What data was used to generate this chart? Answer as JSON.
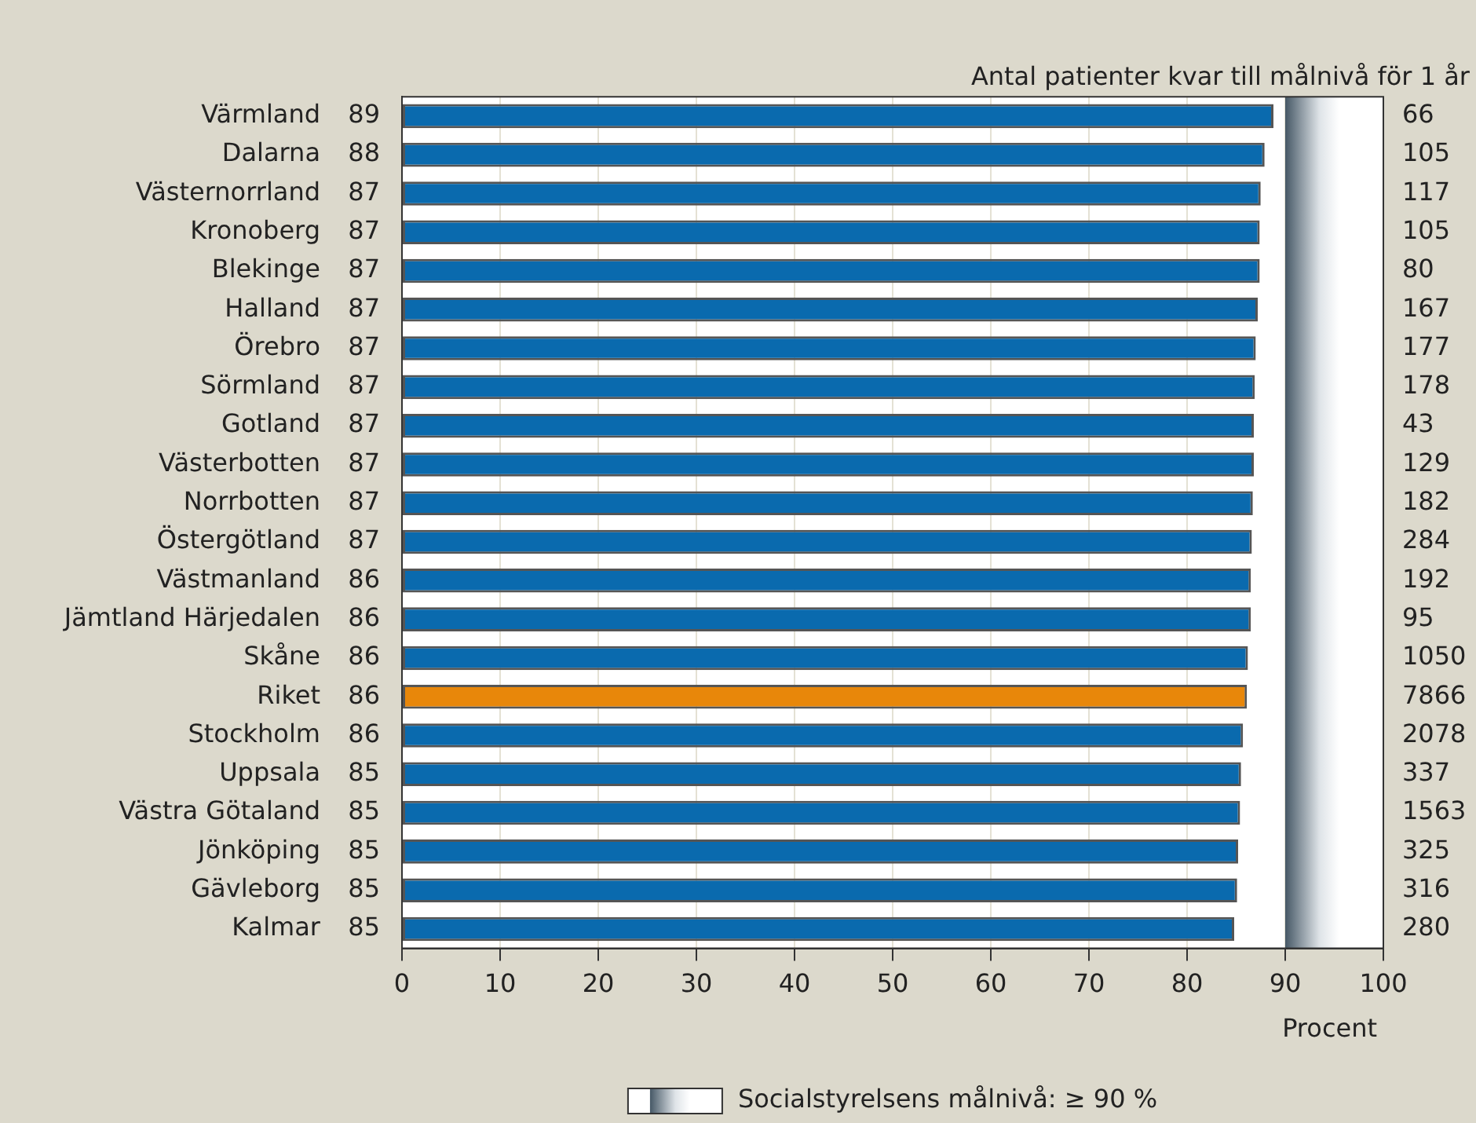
{
  "chart_data": {
    "type": "bar",
    "orientation": "horizontal",
    "xlabel": "Procent",
    "categories": [
      "Värmland",
      "Dalarna",
      "Västernorrland",
      "Kronoberg",
      "Blekinge",
      "Halland",
      "Örebro",
      "Sörmland",
      "Gotland",
      "Västerbotten",
      "Norrbotten",
      "Östergötland",
      "Västmanland",
      "Jämtland Härjedalen",
      "Skåne",
      "Riket",
      "Stockholm",
      "Uppsala",
      "Västra Götaland",
      "Jönköping",
      "Gävleborg",
      "Kalmar"
    ],
    "values": [
      88.8,
      87.9,
      87.5,
      87.4,
      87.4,
      87.2,
      87.0,
      86.9,
      86.8,
      86.8,
      86.7,
      86.6,
      86.5,
      86.5,
      86.2,
      86.1,
      85.7,
      85.5,
      85.4,
      85.2,
      85.1,
      84.8
    ],
    "value_labels": [
      "89",
      "88",
      "87",
      "87",
      "87",
      "87",
      "87",
      "87",
      "87",
      "87",
      "87",
      "87",
      "86",
      "86",
      "86",
      "86",
      "86",
      "85",
      "85",
      "85",
      "85",
      "85"
    ],
    "colors": [
      "#0a6aae",
      "#0a6aae",
      "#0a6aae",
      "#0a6aae",
      "#0a6aae",
      "#0a6aae",
      "#0a6aae",
      "#0a6aae",
      "#0a6aae",
      "#0a6aae",
      "#0a6aae",
      "#0a6aae",
      "#0a6aae",
      "#0a6aae",
      "#0a6aae",
      "#e8870a",
      "#0a6aae",
      "#0a6aae",
      "#0a6aae",
      "#0a6aae",
      "#0a6aae",
      "#0a6aae"
    ],
    "xlim": [
      0,
      100
    ],
    "xticks": [
      0,
      10,
      20,
      30,
      40,
      50,
      60,
      70,
      80,
      90,
      100
    ],
    "grid": "x",
    "legend": "bottom",
    "bands": [
      {
        "axis": "x",
        "from": 90,
        "to": 100,
        "label": "Socialstyrelsens målnivå: ≥ 90 %",
        "color": "#465866"
      }
    ],
    "annotations": [
      "Antal patienter kvar till målnivå för 1 år",
      "66",
      "105",
      "117",
      "105",
      "80",
      "167",
      "177",
      "178",
      "43",
      "129",
      "182",
      "284",
      "192",
      "95",
      "1050",
      "7866",
      "2078",
      "337",
      "1563",
      "325",
      "316",
      "280"
    ]
  }
}
